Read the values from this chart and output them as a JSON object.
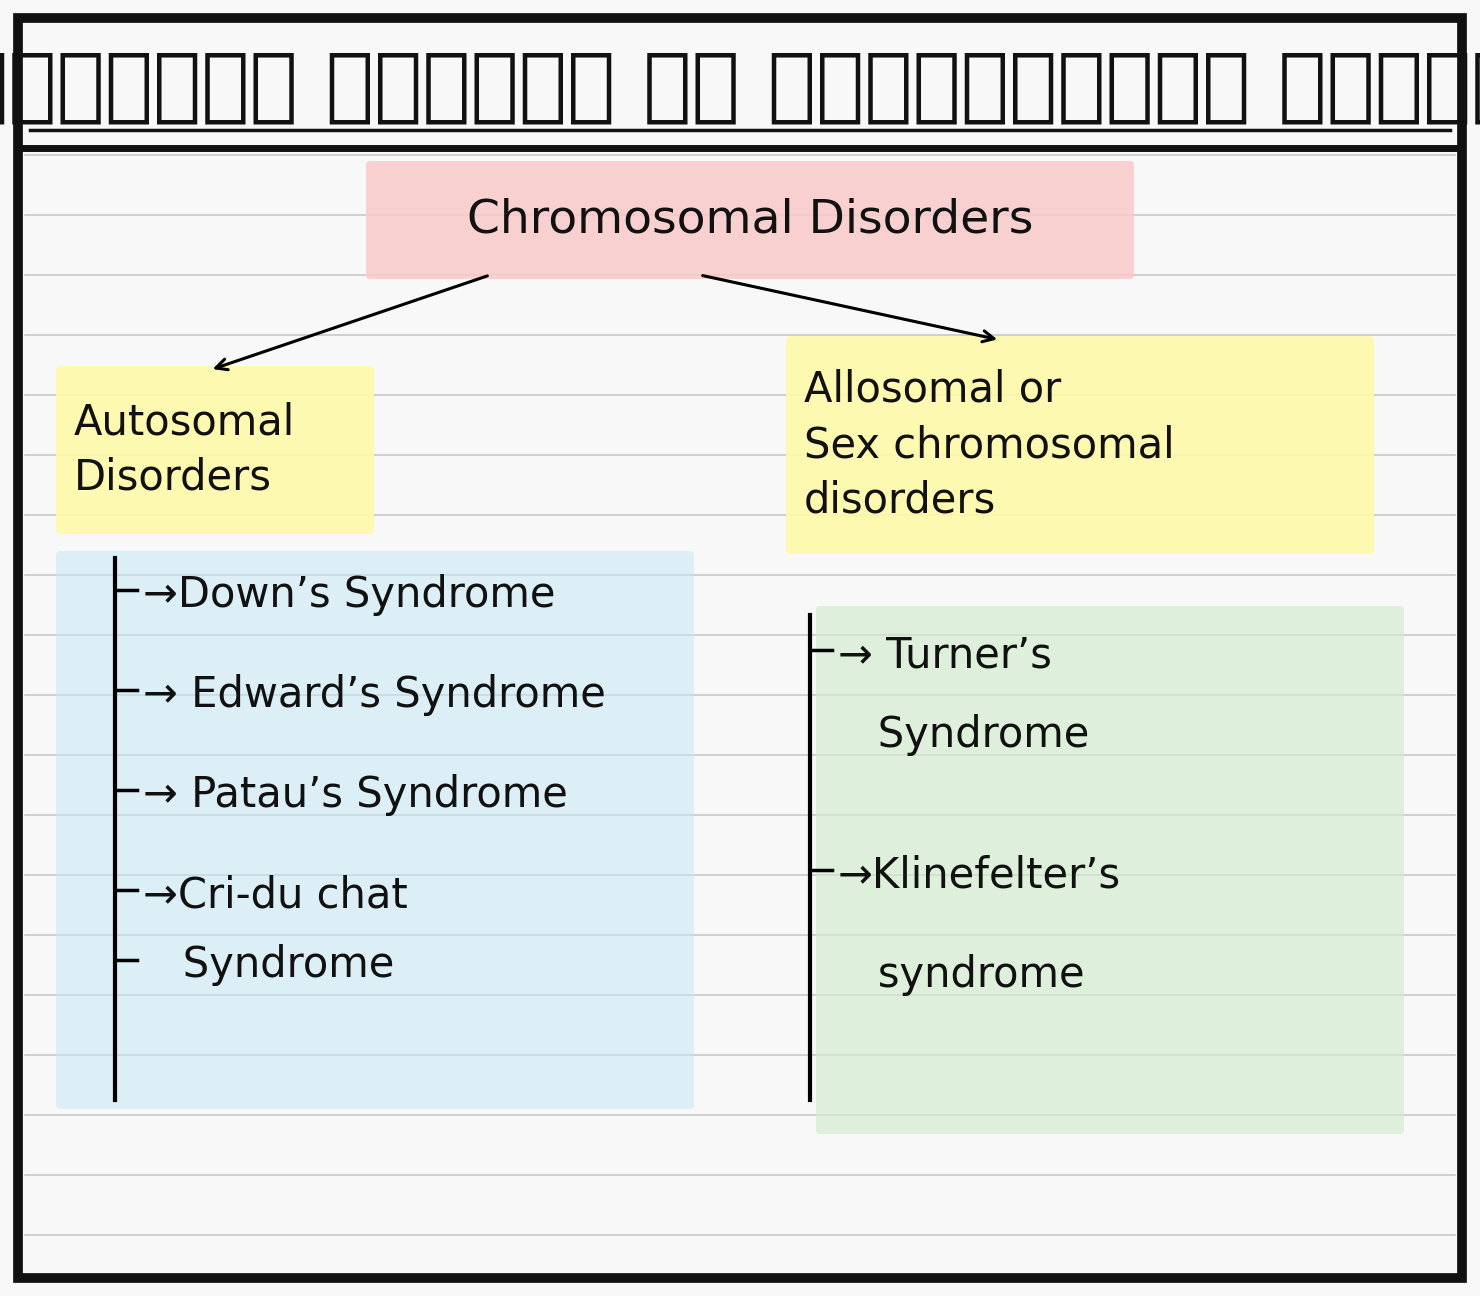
{
  "bg_color": "#f8f8f8",
  "border_color": "#111111",
  "line_color": "#c8c8c8",
  "text_color": "#111111",
  "figsize": [
    14.8,
    12.96
  ],
  "dpi": 100,
  "title_hindi": "विभिन्न प्रकार के क्रोमोसोमल विकार",
  "pink_bg": "#f9caca",
  "yellow_bg": "#fefaaa",
  "blue_bg": "#c5e8f5",
  "green_bg": "#d0eccc",
  "chrom_text": "Chromosomal Disorders",
  "auto_text": "Autosomal\nDisorders",
  "allo_text": "Allosomal or\nSex chromosomal\ndisorders",
  "left_items": [
    "→Down’s Syndrome",
    "→ Edward’s Syndrome",
    "→ Patau’s Syndrome",
    "→Cri-du chat",
    "   Syndrome"
  ],
  "right_items": [
    "→ Turner’s",
    "   Syndrome",
    "→Klinefelter’s",
    "   syndrome"
  ]
}
